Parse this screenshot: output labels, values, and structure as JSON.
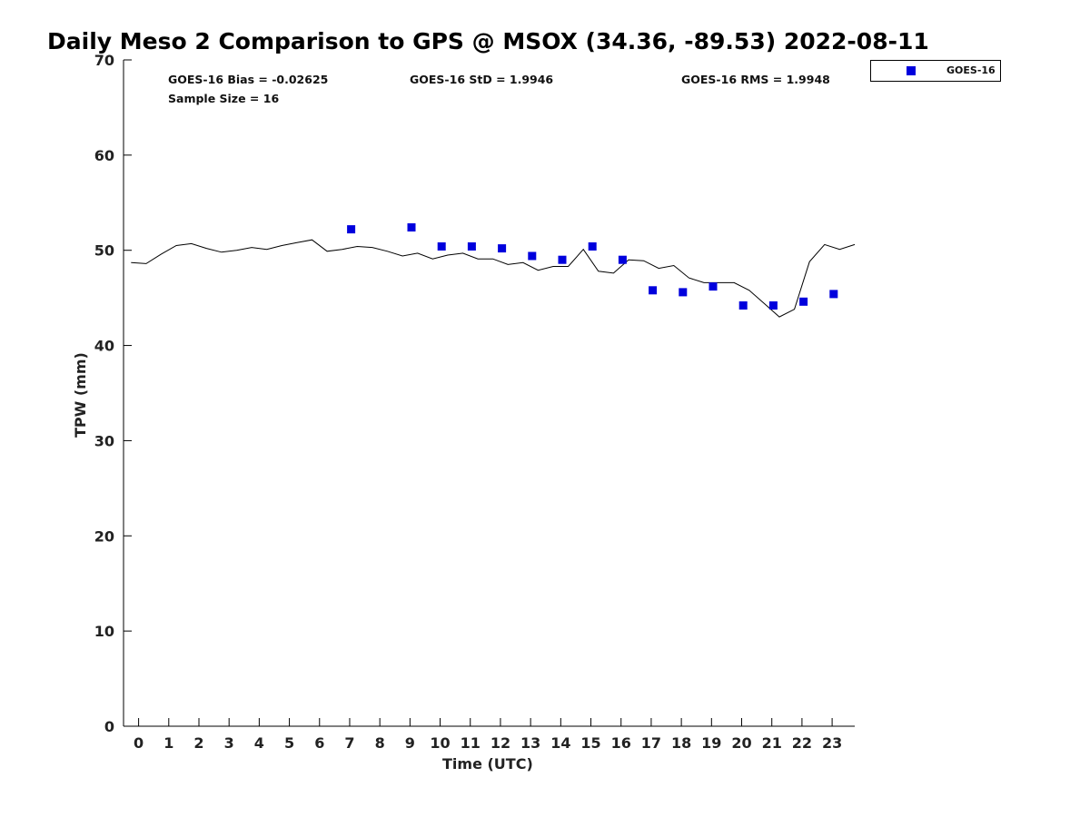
{
  "chart_data": {
    "type": "scatter",
    "title": "Daily Meso 2 Comparison to GPS @ MSOX (34.36, -89.53) 2022-08-11",
    "xlabel": "Time (UTC)",
    "ylabel": "TPW (mm)",
    "xlim": [
      -0.5,
      23.75
    ],
    "ylim": [
      0,
      70
    ],
    "xticks": [
      0,
      1,
      2,
      3,
      4,
      5,
      6,
      7,
      8,
      9,
      10,
      11,
      12,
      13,
      14,
      15,
      16,
      17,
      18,
      19,
      20,
      21,
      22,
      23
    ],
    "yticks": [
      0,
      10,
      20,
      30,
      40,
      50,
      60,
      70
    ],
    "stats": {
      "bias": "GOES-16 Bias = -0.02625",
      "std": "GOES-16 StD = 1.9946",
      "rms": "GOES-16 RMS = 1.9948",
      "sample": "Sample Size = 16"
    },
    "legend": {
      "position": "top-right",
      "entries": [
        "GOES-16"
      ]
    },
    "grid": false,
    "series": [
      {
        "name": "GOES-16",
        "kind": "scatter",
        "color": "#0000dd",
        "x": [
          7.05,
          9.05,
          10.05,
          11.05,
          12.05,
          13.05,
          14.05,
          15.05,
          16.05,
          17.05,
          18.05,
          19.05,
          20.05,
          21.05,
          22.05,
          23.05
        ],
        "y": [
          52.2,
          52.4,
          50.4,
          50.4,
          50.2,
          49.4,
          49.0,
          50.4,
          49.0,
          45.8,
          45.6,
          46.2,
          44.2,
          44.2,
          44.6,
          45.4
        ]
      },
      {
        "kind": "line",
        "color": "#000000",
        "x": [
          -0.25,
          0.25,
          0.75,
          1.25,
          1.75,
          2.25,
          2.75,
          3.25,
          3.75,
          4.25,
          4.75,
          5.25,
          5.75,
          6.25,
          6.75,
          7.25,
          7.75,
          8.25,
          8.75,
          9.25,
          9.75,
          10.25,
          10.75,
          11.25,
          11.75,
          12.25,
          12.75,
          13.25,
          13.75,
          14.25,
          14.75,
          15.25,
          15.75,
          16.25,
          16.75,
          17.25,
          17.75,
          18.25,
          18.75,
          19.25,
          19.75,
          20.25,
          20.75,
          21.25,
          21.75,
          22.25,
          22.75,
          23.25,
          23.75
        ],
        "y": [
          48.7,
          48.6,
          49.6,
          50.5,
          50.7,
          50.2,
          49.8,
          50.0,
          50.3,
          50.1,
          50.5,
          50.8,
          51.1,
          49.9,
          50.1,
          50.4,
          50.3,
          49.9,
          49.4,
          49.7,
          49.1,
          49.5,
          49.7,
          49.1,
          49.1,
          48.5,
          48.7,
          47.9,
          48.3,
          48.3,
          50.1,
          47.8,
          47.6,
          49.0,
          48.9,
          48.1,
          48.4,
          47.1,
          46.6,
          46.6,
          46.6,
          45.8,
          44.4,
          43.0,
          43.8,
          48.8,
          50.6,
          50.1,
          50.6
        ]
      }
    ]
  }
}
